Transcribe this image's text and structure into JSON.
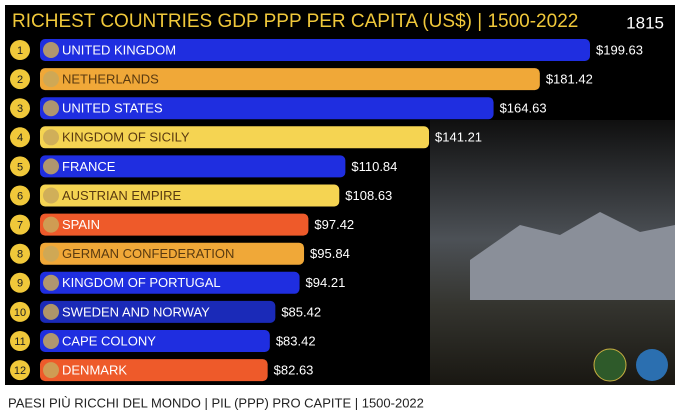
{
  "chart_data": {
    "type": "bar-race",
    "title": "RICHEST COUNTRIES GDP PPP PER CAPITA (US$) | 1500-2022",
    "year": "1815",
    "caption": "PAESI PIÙ RICCHI DEL MONDO | PIL (PPP) PRO CAPITE | 1500-2022",
    "ranks": [
      1,
      2,
      3,
      4,
      5,
      6,
      7,
      8,
      9,
      10,
      11,
      12
    ],
    "categories": [
      "UNITED KINGDOM",
      "NETHERLANDS",
      "UNITED STATES",
      "KINGDOM OF SICILY",
      "FRANCE",
      "AUSTRIAN EMPIRE",
      "SPAIN",
      "GERMAN CONFEDERATION",
      "KINGDOM OF PORTUGAL",
      "SWEDEN AND NORWAY",
      "CAPE COLONY",
      "DENMARK"
    ],
    "values": [
      199.63,
      181.42,
      164.63,
      141.21,
      110.84,
      108.63,
      97.42,
      95.84,
      94.21,
      85.42,
      83.42,
      82.63
    ],
    "value_labels": [
      "$199.63",
      "$181.42",
      "$164.63",
      "$141.21",
      "$110.84",
      "$108.63",
      "$97.42",
      "$95.84",
      "$94.21",
      "$85.42",
      "$83.42",
      "$82.63"
    ],
    "colors": [
      "#1f2ee0",
      "#f0a838",
      "#1f2ee0",
      "#f5d452",
      "#1f2ee0",
      "#f5d452",
      "#ee5a2a",
      "#f0a838",
      "#1f2ee0",
      "#1a2ab8",
      "#1f2ee0",
      "#ee5a2a"
    ]
  }
}
